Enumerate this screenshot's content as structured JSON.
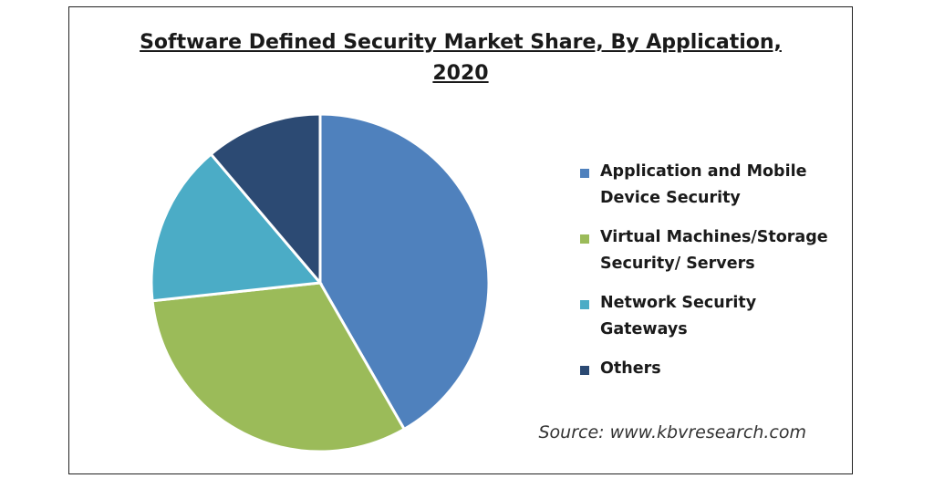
{
  "chart_data": {
    "type": "pie",
    "title": "Software Defined Security Market Share, By Application, 2020",
    "title_lines": [
      "Software Defined Security Market Share, By Application,",
      "2020"
    ],
    "labels": [
      "Application and Mobile Device Security",
      "Virtual Machines/Storage Security/ Servers",
      "Network Security Gateways",
      "Others"
    ],
    "legend_lines": [
      [
        "Application and Mobile",
        "Device Security"
      ],
      [
        "Virtual Machines/Storage",
        "Security/ Servers"
      ],
      [
        "Network Security",
        "Gateways"
      ],
      [
        "Others"
      ]
    ],
    "values": [
      41.7,
      31.6,
      15.5,
      11.2
    ],
    "colors": [
      "#4F81BD",
      "#9BBB59",
      "#4BACC6",
      "#2C4A73"
    ],
    "legend_position": "right",
    "start_angle_deg": 0,
    "direction": "clockwise"
  },
  "source": "Source: www.kbvresearch.com"
}
